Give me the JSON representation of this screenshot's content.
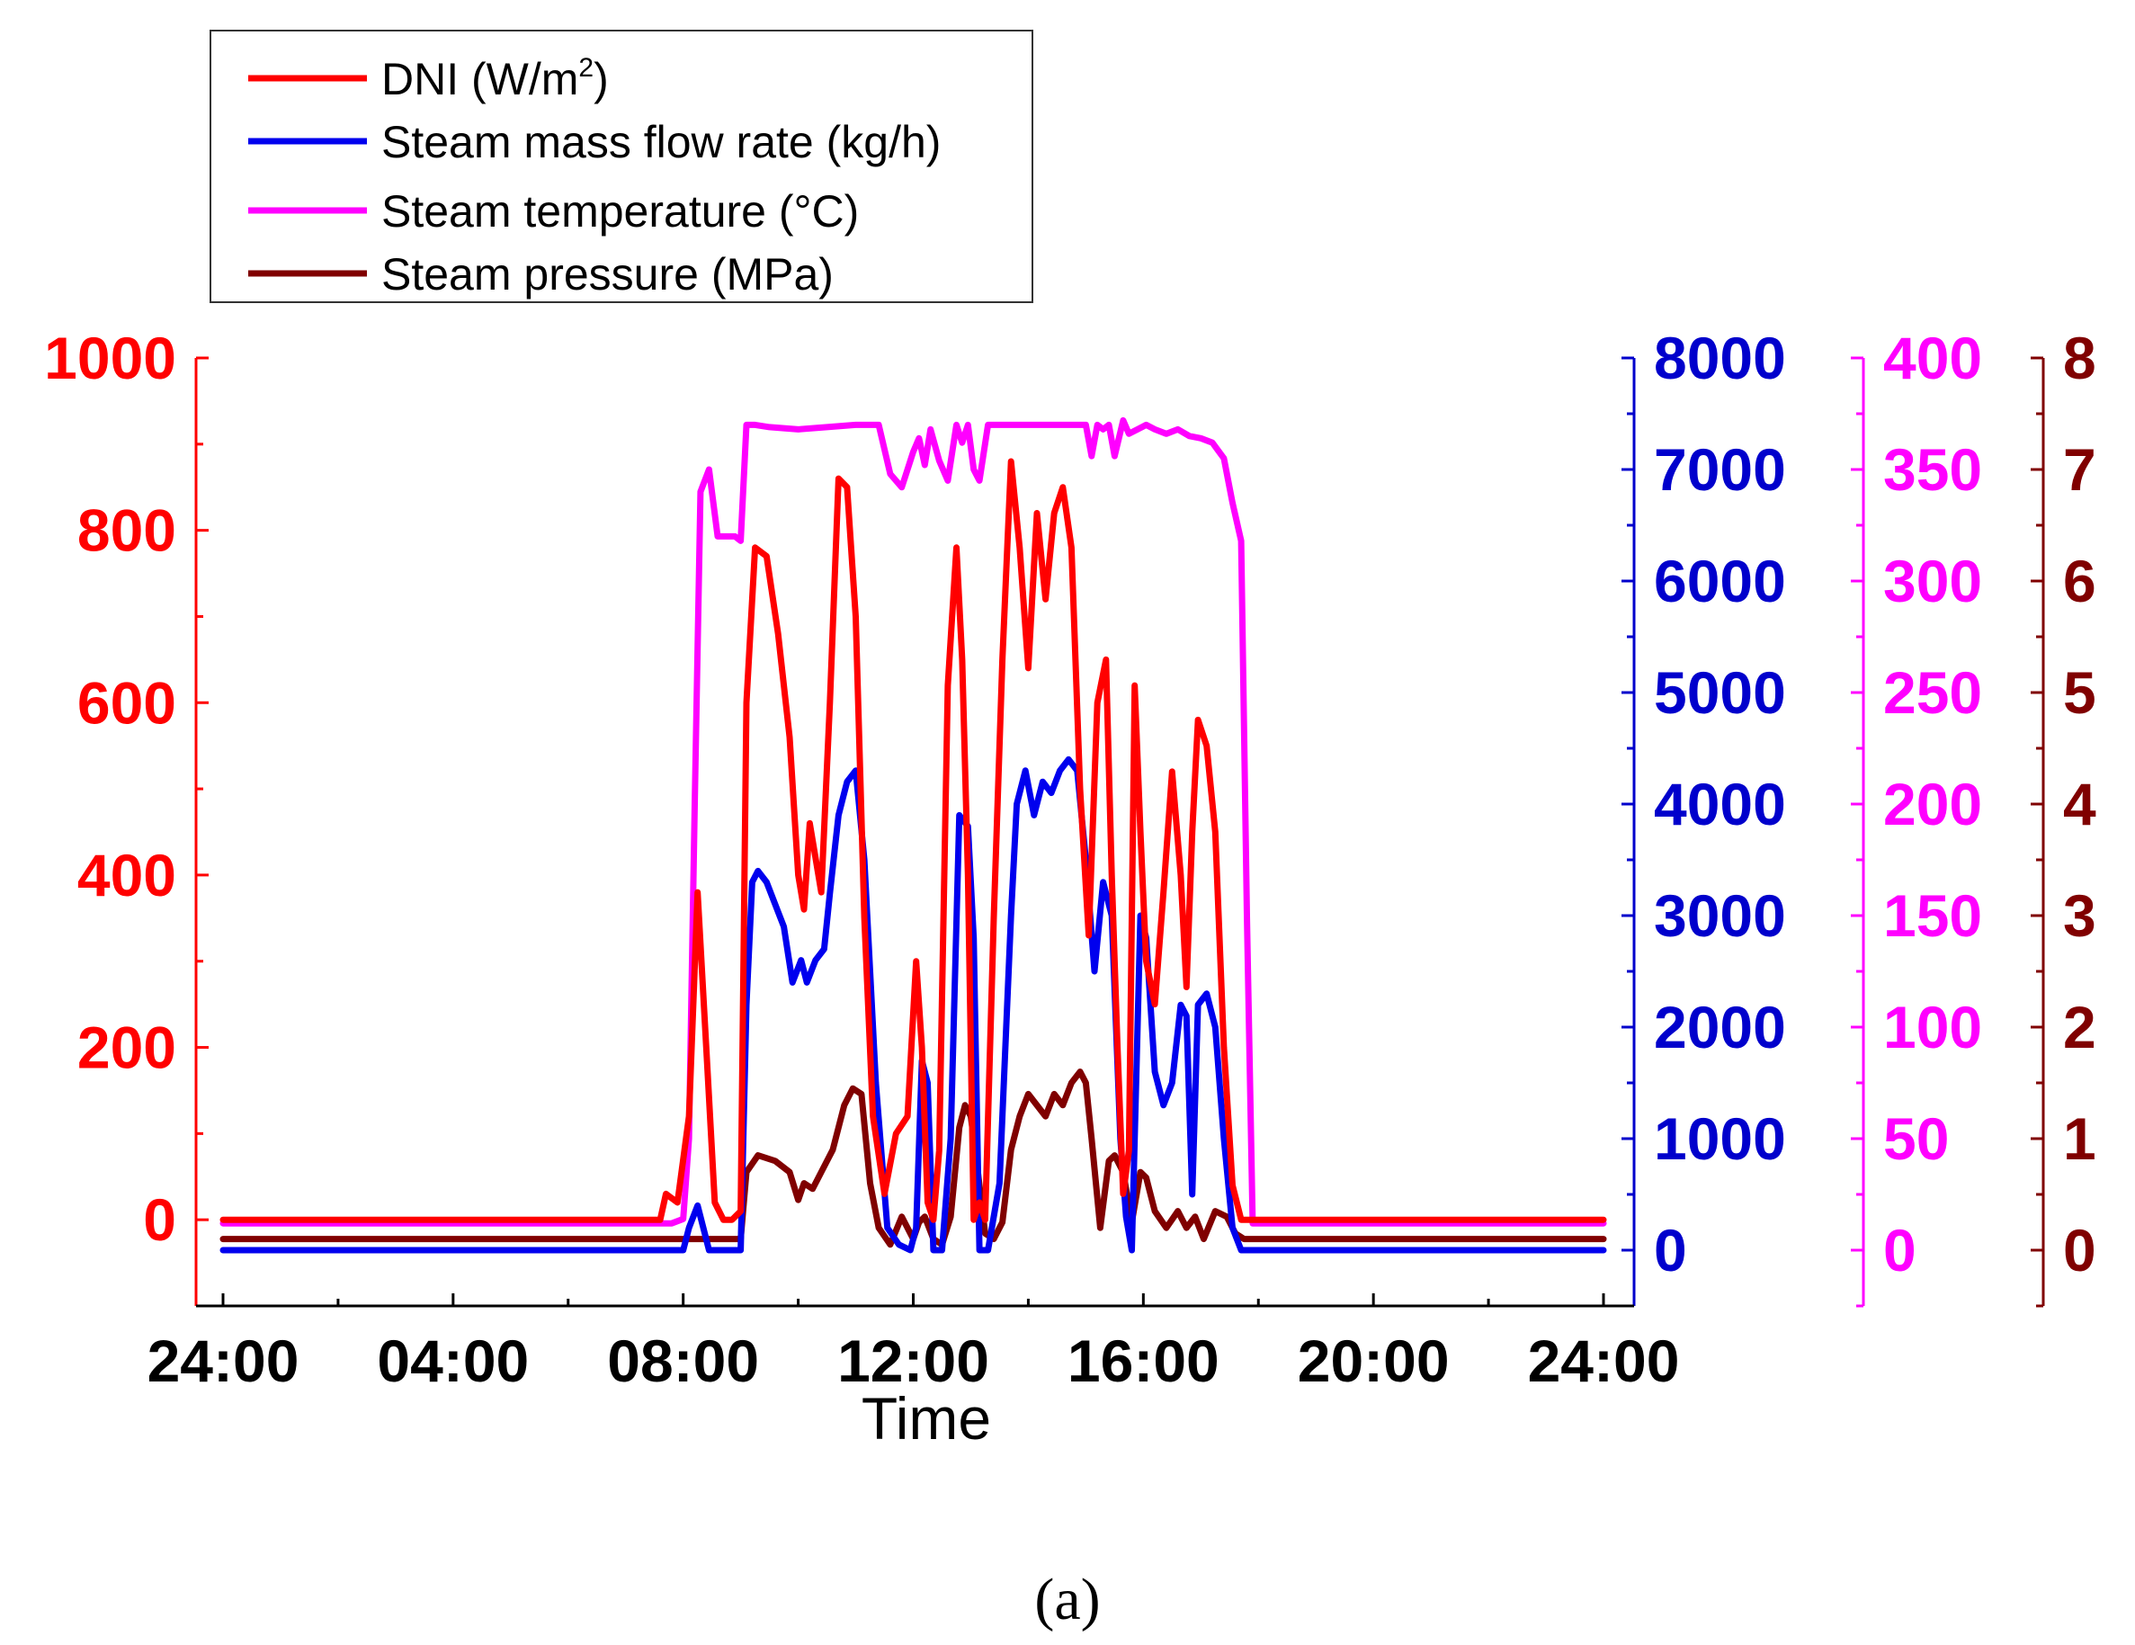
{
  "chart_data": {
    "type": "line",
    "xlabel": "Time",
    "x_tick_labels": [
      "24:00",
      "04:00",
      "08:00",
      "12:00",
      "16:00",
      "20:00",
      "24:00"
    ],
    "x_range_hours": [
      0,
      24
    ],
    "legend": {
      "placement": "top-left",
      "entries": [
        {
          "label_main": "DNI (W/m",
          "label_sup": "2",
          "label_tail": ")",
          "color": "#ff0000"
        },
        {
          "label_main": "Steam mass flow rate (kg/h)",
          "label_sup": "",
          "label_tail": "",
          "color": "#0000ee"
        },
        {
          "label_main": "Steam temperature (°C)",
          "label_sup": "",
          "label_tail": "",
          "color": "#ff00ff"
        },
        {
          "label_main": "Steam pressure (MPa)",
          "label_sup": "",
          "label_tail": "",
          "color": "#800000"
        }
      ]
    },
    "axes": [
      {
        "id": "dni",
        "side": "left",
        "color": "#ff0000",
        "range": [
          -100,
          1000
        ],
        "ticks": [
          0,
          200,
          400,
          600,
          800,
          1000
        ],
        "tick_labels": [
          "0",
          "200",
          "400",
          "600",
          "800",
          "1000"
        ]
      },
      {
        "id": "flow",
        "side": "right-1",
        "color": "#0000cc",
        "range": [
          -500,
          8000
        ],
        "ticks": [
          0,
          1000,
          2000,
          3000,
          4000,
          5000,
          6000,
          7000,
          8000
        ],
        "tick_labels": [
          "0",
          "1000",
          "2000",
          "3000",
          "4000",
          "5000",
          "6000",
          "7000",
          "8000"
        ]
      },
      {
        "id": "temp",
        "side": "right-2",
        "color": "#ff00ff",
        "range": [
          -25,
          400
        ],
        "ticks": [
          0,
          50,
          100,
          150,
          200,
          250,
          300,
          350,
          400
        ],
        "tick_labels": [
          "0",
          "50",
          "100",
          "150",
          "200",
          "250",
          "300",
          "350",
          "400"
        ]
      },
      {
        "id": "pres",
        "side": "right-3",
        "color": "#800000",
        "range": [
          -0.5,
          8
        ],
        "ticks": [
          0,
          1,
          2,
          3,
          4,
          5,
          6,
          7,
          8
        ],
        "tick_labels": [
          "0",
          "1",
          "2",
          "3",
          "4",
          "5",
          "6",
          "7",
          "8"
        ]
      }
    ],
    "series": [
      {
        "name": "DNI",
        "axis": "dni",
        "color": "#ff0000",
        "x": [
          0,
          7.6,
          7.7,
          7.9,
          8.1,
          8.25,
          8.4,
          8.55,
          8.7,
          8.85,
          9.0,
          9.1,
          9.25,
          9.45,
          9.65,
          9.85,
          10.0,
          10.1,
          10.2,
          10.3,
          10.4,
          10.55,
          10.7,
          10.85,
          11.0,
          11.15,
          11.3,
          11.5,
          11.7,
          11.9,
          12.05,
          12.15,
          12.25,
          12.35,
          12.45,
          12.6,
          12.75,
          12.85,
          12.95,
          13.05,
          13.15,
          13.25,
          13.4,
          13.55,
          13.7,
          13.85,
          14.0,
          14.15,
          14.3,
          14.45,
          14.6,
          14.75,
          14.9,
          15.05,
          15.2,
          15.35,
          15.45,
          15.55,
          15.65,
          15.75,
          15.85,
          15.95,
          16.05,
          16.2,
          16.35,
          16.5,
          16.65,
          16.75,
          16.85,
          16.95,
          17.1,
          17.25,
          17.4,
          17.55,
          17.7,
          17.85,
          18.0,
          24.0
        ],
        "y": [
          0,
          0,
          30,
          20,
          120,
          380,
          200,
          20,
          0,
          0,
          10,
          600,
          780,
          770,
          680,
          560,
          400,
          360,
          460,
          420,
          380,
          600,
          860,
          850,
          700,
          350,
          120,
          30,
          100,
          120,
          300,
          200,
          20,
          0,
          80,
          620,
          780,
          650,
          400,
          0,
          20,
          0,
          350,
          650,
          880,
          780,
          640,
          820,
          720,
          820,
          850,
          780,
          500,
          330,
          600,
          650,
          400,
          200,
          30,
          80,
          620,
          450,
          300,
          250,
          380,
          520,
          400,
          270,
          450,
          580,
          550,
          450,
          200,
          40,
          0,
          0,
          0,
          0
        ]
      },
      {
        "name": "Steam mass flow rate",
        "axis": "flow",
        "color": "#0000ee",
        "x": [
          0,
          8.0,
          8.1,
          8.25,
          8.45,
          8.6,
          8.9,
          9.0,
          9.1,
          9.2,
          9.3,
          9.45,
          9.6,
          9.75,
          9.9,
          10.05,
          10.15,
          10.3,
          10.45,
          10.55,
          10.7,
          10.85,
          11.0,
          11.15,
          11.35,
          11.55,
          11.75,
          11.95,
          12.05,
          12.15,
          12.25,
          12.35,
          12.5,
          12.65,
          12.8,
          12.95,
          13.05,
          13.15,
          13.3,
          13.5,
          13.7,
          13.8,
          13.95,
          14.1,
          14.25,
          14.4,
          14.55,
          14.7,
          14.85,
          15.0,
          15.15,
          15.3,
          15.45,
          15.6,
          15.7,
          15.8,
          15.95,
          16.05,
          16.2,
          16.35,
          16.5,
          16.65,
          16.75,
          16.85,
          16.95,
          17.1,
          17.25,
          17.4,
          17.55,
          17.7,
          17.85,
          18.0,
          24.0
        ],
        "y": [
          0,
          0,
          200,
          400,
          0,
          0,
          0,
          0,
          2200,
          3300,
          3400,
          3300,
          3100,
          2900,
          2400,
          2600,
          2400,
          2600,
          2700,
          3200,
          3900,
          4200,
          4300,
          3500,
          1500,
          200,
          50,
          0,
          200,
          1700,
          1500,
          0,
          0,
          1000,
          3900,
          3800,
          2800,
          0,
          0,
          600,
          3000,
          4000,
          4300,
          3900,
          4200,
          4100,
          4300,
          4400,
          4300,
          3500,
          2500,
          3300,
          3000,
          1000,
          300,
          0,
          3000,
          2800,
          1600,
          1300,
          1500,
          2200,
          2100,
          500,
          2200,
          2300,
          2000,
          1000,
          200,
          0,
          0,
          0,
          0
        ]
      },
      {
        "name": "Steam temperature",
        "axis": "temp",
        "color": "#ff00ff",
        "x": [
          0,
          7.6,
          7.8,
          8.0,
          8.1,
          8.2,
          8.3,
          8.45,
          8.6,
          8.75,
          8.9,
          9.0,
          9.1,
          9.25,
          9.5,
          10.0,
          10.5,
          11.0,
          11.4,
          11.6,
          11.8,
          12.0,
          12.1,
          12.2,
          12.3,
          12.45,
          12.6,
          12.75,
          12.85,
          12.95,
          13.05,
          13.15,
          13.3,
          13.45,
          13.6,
          13.75,
          14.0,
          14.5,
          15.0,
          15.1,
          15.2,
          15.3,
          15.4,
          15.5,
          15.65,
          15.75,
          15.9,
          16.05,
          16.2,
          16.4,
          16.6,
          16.8,
          17.0,
          17.2,
          17.4,
          17.55,
          17.7,
          17.8,
          17.9,
          24.0
        ],
        "y": [
          12,
          12,
          12,
          14,
          50,
          200,
          340,
          350,
          320,
          320,
          320,
          318,
          370,
          370,
          369,
          368,
          369,
          370,
          370,
          348,
          342,
          358,
          364,
          352,
          368,
          354,
          345,
          370,
          362,
          370,
          350,
          345,
          370,
          370,
          370,
          370,
          370,
          370,
          370,
          356,
          370,
          368,
          370,
          356,
          372,
          366,
          368,
          370,
          368,
          366,
          368,
          365,
          364,
          362,
          355,
          335,
          318,
          150,
          12,
          12
        ]
      },
      {
        "name": "Steam pressure",
        "axis": "pres",
        "color": "#800000",
        "x": [
          0,
          8.8,
          9.0,
          9.1,
          9.3,
          9.6,
          9.85,
          10.0,
          10.1,
          10.25,
          10.4,
          10.6,
          10.8,
          10.95,
          11.1,
          11.25,
          11.4,
          11.6,
          11.8,
          12.0,
          12.1,
          12.2,
          12.35,
          12.5,
          12.65,
          12.8,
          12.9,
          13.0,
          13.1,
          13.25,
          13.4,
          13.55,
          13.7,
          13.85,
          14.0,
          14.15,
          14.3,
          14.45,
          14.6,
          14.75,
          14.9,
          15.0,
          15.1,
          15.25,
          15.4,
          15.5,
          15.65,
          15.8,
          15.95,
          16.05,
          16.2,
          16.4,
          16.6,
          16.75,
          16.9,
          17.05,
          17.25,
          17.45,
          17.6,
          17.75,
          17.9,
          24.0
        ],
        "y": [
          0.1,
          0.1,
          0.1,
          0.7,
          0.85,
          0.8,
          0.7,
          0.45,
          0.6,
          0.55,
          0.7,
          0.9,
          1.3,
          1.45,
          1.4,
          0.6,
          0.2,
          0.05,
          0.3,
          0.1,
          0.25,
          0.3,
          0.1,
          0.05,
          0.3,
          1.1,
          1.3,
          1.2,
          0.8,
          0.15,
          0.1,
          0.25,
          0.9,
          1.2,
          1.4,
          1.3,
          1.2,
          1.4,
          1.3,
          1.5,
          1.6,
          1.5,
          1.0,
          0.2,
          0.8,
          0.85,
          0.7,
          0.25,
          0.7,
          0.65,
          0.35,
          0.2,
          0.35,
          0.2,
          0.3,
          0.1,
          0.35,
          0.3,
          0.15,
          0.1,
          0.1,
          0.1
        ]
      }
    ]
  },
  "caption": "(a)"
}
